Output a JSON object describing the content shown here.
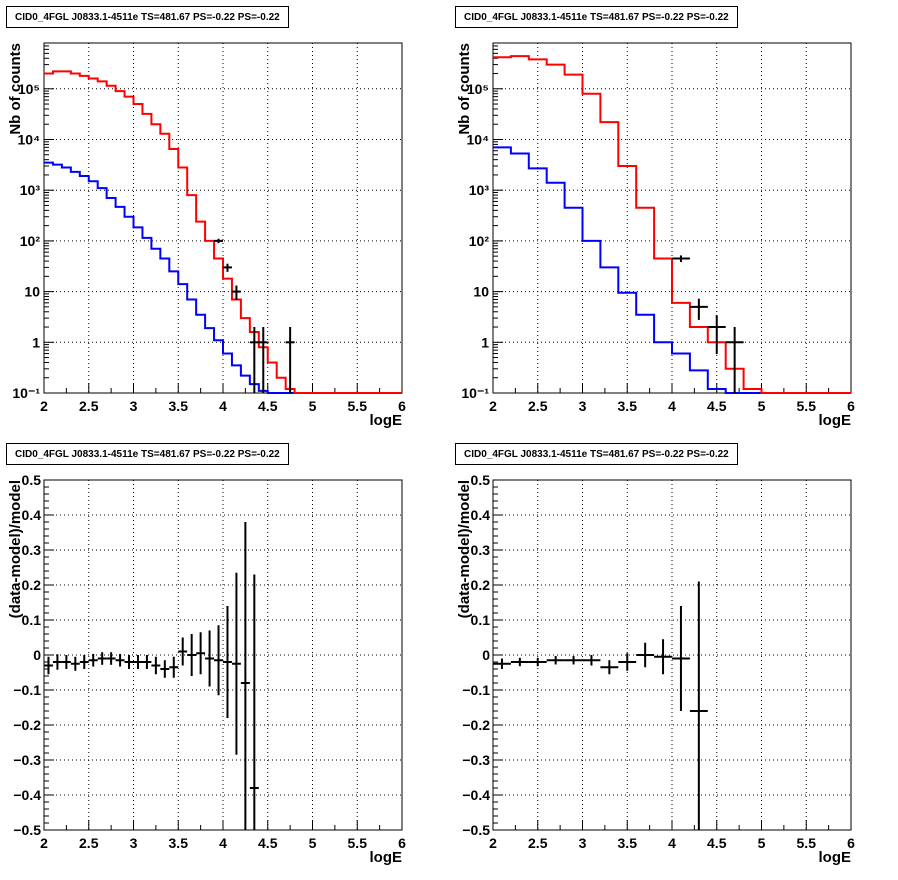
{
  "colors": {
    "model_total": "#ff0000",
    "model_source": "#0000ff",
    "data": "#000000",
    "grid": "#000000"
  },
  "charts": [
    {
      "title": "CID0_4FGL J0833.1-4511e TS=481.67 PS=-0.22 PS=-0.22",
      "xlabel": "logE",
      "ylabel": "Nb of counts",
      "xticks": [
        "2",
        "2.5",
        "3",
        "3.5",
        "4",
        "4.5",
        "5",
        "5.5",
        "6"
      ],
      "yticks": [
        "10⁻¹",
        "1",
        "10",
        "10²",
        "10³",
        "10⁴",
        "10⁵"
      ]
    },
    {
      "title": "CID0_4FGL J0833.1-4511e TS=481.67 PS=-0.22 PS=-0.22",
      "xlabel": "logE",
      "ylabel": "Nb of counts",
      "xticks": [
        "2",
        "2.5",
        "3",
        "3.5",
        "4",
        "4.5",
        "5",
        "5.5",
        "6"
      ],
      "yticks": [
        "10⁻¹",
        "1",
        "10",
        "10²",
        "10³",
        "10⁴",
        "10⁵"
      ]
    },
    {
      "title": "CID0_4FGL J0833.1-4511e TS=481.67 PS=-0.22 PS=-0.22",
      "xlabel": "logE",
      "ylabel": "(data-model)/model",
      "xticks": [
        "2",
        "2.5",
        "3",
        "3.5",
        "4",
        "4.5",
        "5",
        "5.5",
        "6"
      ],
      "yticks": [
        "−0.5",
        "−0.4",
        "−0.3",
        "−0.2",
        "−0.1",
        "0",
        "0.1",
        "0.2",
        "0.3",
        "0.4",
        "0.5"
      ]
    },
    {
      "title": "CID0_4FGL J0833.1-4511e TS=481.67 PS=-0.22 PS=-0.22",
      "xlabel": "logE",
      "ylabel": "(data-model)/model",
      "xticks": [
        "2",
        "2.5",
        "3",
        "3.5",
        "4",
        "4.5",
        "5",
        "5.5",
        "6"
      ],
      "yticks": [
        "−0.5",
        "−0.4",
        "−0.3",
        "−0.2",
        "−0.1",
        "0",
        "0.1",
        "0.2",
        "0.3",
        "0.4",
        "0.5"
      ]
    }
  ],
  "chart_data": [
    {
      "type": "line",
      "yscale": "log",
      "xlim": [
        2,
        6
      ],
      "ylim": [
        0.1,
        800000
      ],
      "grid": true,
      "x_edges": [
        2,
        2.1,
        2.2,
        2.3,
        2.4,
        2.5,
        2.6,
        2.7,
        2.8,
        2.9,
        3,
        3.1,
        3.2,
        3.3,
        3.4,
        3.5,
        3.6,
        3.7,
        3.8,
        3.9,
        4,
        4.1,
        4.2,
        4.3,
        4.4,
        4.5,
        4.6,
        4.7,
        4.8,
        4.9,
        5,
        5.1,
        5.2,
        5.3,
        5.4,
        5.5,
        5.6,
        5.7,
        5.8,
        5.9,
        6
      ],
      "series": [
        {
          "values": [
            200000,
            220000,
            220000,
            200000,
            180000,
            160000,
            140000,
            115000,
            90000,
            70000,
            50000,
            32000,
            20000,
            13000,
            6500,
            2800,
            800,
            240,
            100,
            45,
            18,
            7,
            3,
            1.6,
            0.8,
            0.4,
            0.2,
            0.12,
            0.1,
            0.1,
            0.1,
            0.1,
            0.1,
            0.1,
            0.1,
            0.1,
            0.1,
            0.1,
            0.1,
            0.1
          ]
        },
        {
          "values": [
            3500,
            3200,
            2800,
            2300,
            1900,
            1500,
            1100,
            700,
            470,
            300,
            185,
            115,
            70,
            45,
            25,
            14,
            7,
            3.5,
            1.9,
            1.1,
            0.6,
            0.35,
            0.22,
            0.15,
            0.11,
            0.1,
            0.1,
            0.1,
            0.1,
            0.1,
            0.1,
            0.1,
            0.1,
            0.1,
            0.1,
            0.1,
            0.1,
            0.1,
            0.1,
            0.1
          ]
        }
      ],
      "data_points": [
        {
          "x": 3.95,
          "y": 100
        },
        {
          "x": 4.05,
          "y": 30
        },
        {
          "x": 4.15,
          "y": 10
        },
        {
          "x": 4.35,
          "y": 1
        },
        {
          "x": 4.45,
          "y": 1
        },
        {
          "x": 4.75,
          "y": 1
        }
      ]
    },
    {
      "type": "line",
      "yscale": "log",
      "xlim": [
        2,
        6
      ],
      "ylim": [
        0.1,
        800000
      ],
      "grid": true,
      "x_edges": [
        2,
        2.2,
        2.4,
        2.6,
        2.8,
        3,
        3.2,
        3.4,
        3.6,
        3.8,
        4,
        4.2,
        4.4,
        4.6,
        4.8,
        5,
        5.2,
        5.4,
        5.6,
        5.8,
        6
      ],
      "series": [
        {
          "values": [
            420000,
            440000,
            380000,
            300000,
            190000,
            80000,
            22000,
            3000,
            450,
            45,
            6,
            2,
            1,
            0.3,
            0.12,
            0.1,
            0.1,
            0.1,
            0.1,
            0.1
          ]
        },
        {
          "values": [
            7000,
            5300,
            2700,
            1400,
            450,
            100,
            30,
            9.5,
            3.5,
            1,
            0.6,
            0.28,
            0.12,
            0.1,
            0.1,
            0.1,
            0.1,
            0.1,
            0.1,
            0.1
          ]
        }
      ],
      "data_points": [
        {
          "x": 4.1,
          "y": 45
        },
        {
          "x": 4.3,
          "y": 5
        },
        {
          "x": 4.5,
          "y": 2
        },
        {
          "x": 4.7,
          "y": 1
        }
      ]
    },
    {
      "type": "scatter",
      "xlim": [
        2,
        6
      ],
      "ylim": [
        -0.5,
        0.5
      ],
      "grid": true,
      "points": [
        {
          "x": 2.05,
          "y": -0.03,
          "err": 0.025
        },
        {
          "x": 2.15,
          "y": -0.02,
          "err": 0.022
        },
        {
          "x": 2.25,
          "y": -0.02,
          "err": 0.02
        },
        {
          "x": 2.35,
          "y": -0.025,
          "err": 0.02
        },
        {
          "x": 2.45,
          "y": -0.02,
          "err": 0.02
        },
        {
          "x": 2.55,
          "y": -0.015,
          "err": 0.018
        },
        {
          "x": 2.65,
          "y": -0.01,
          "err": 0.018
        },
        {
          "x": 2.75,
          "y": -0.01,
          "err": 0.018
        },
        {
          "x": 2.85,
          "y": -0.015,
          "err": 0.018
        },
        {
          "x": 2.95,
          "y": -0.02,
          "err": 0.02
        },
        {
          "x": 3.05,
          "y": -0.02,
          "err": 0.02
        },
        {
          "x": 3.15,
          "y": -0.02,
          "err": 0.02
        },
        {
          "x": 3.25,
          "y": -0.03,
          "err": 0.025
        },
        {
          "x": 3.35,
          "y": -0.04,
          "err": 0.025
        },
        {
          "x": 3.45,
          "y": -0.035,
          "err": 0.03
        },
        {
          "x": 3.55,
          "y": 0.01,
          "err": 0.04
        },
        {
          "x": 3.65,
          "y": 0.0,
          "err": 0.06
        },
        {
          "x": 3.75,
          "y": 0.005,
          "err": 0.06
        },
        {
          "x": 3.85,
          "y": -0.01,
          "err": 0.08
        },
        {
          "x": 3.95,
          "y": -0.015,
          "err": 0.1
        },
        {
          "x": 4.05,
          "y": -0.02,
          "err": 0.16
        },
        {
          "x": 4.15,
          "y": -0.025,
          "err": 0.26
        },
        {
          "x": 4.25,
          "y": -0.08,
          "err": 0.46
        },
        {
          "x": 4.35,
          "y": -0.38,
          "err": 0.61
        }
      ]
    },
    {
      "type": "scatter",
      "xlim": [
        2,
        6
      ],
      "ylim": [
        -0.5,
        0.5
      ],
      "grid": true,
      "points": [
        {
          "x": 2.1,
          "y": -0.025,
          "err": 0.015
        },
        {
          "x": 2.3,
          "y": -0.02,
          "err": 0.012
        },
        {
          "x": 2.5,
          "y": -0.02,
          "err": 0.012
        },
        {
          "x": 2.7,
          "y": -0.015,
          "err": 0.012
        },
        {
          "x": 2.9,
          "y": -0.015,
          "err": 0.012
        },
        {
          "x": 3.1,
          "y": -0.015,
          "err": 0.015
        },
        {
          "x": 3.3,
          "y": -0.035,
          "err": 0.02
        },
        {
          "x": 3.5,
          "y": -0.02,
          "err": 0.025
        },
        {
          "x": 3.7,
          "y": 0.0,
          "err": 0.035
        },
        {
          "x": 3.9,
          "y": -0.005,
          "err": 0.05
        },
        {
          "x": 4.1,
          "y": -0.01,
          "err": 0.15
        },
        {
          "x": 4.3,
          "y": -0.16,
          "err": 0.37
        }
      ]
    }
  ]
}
